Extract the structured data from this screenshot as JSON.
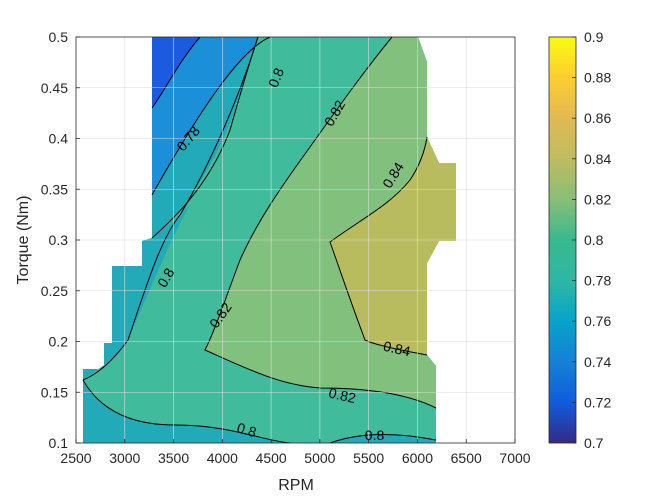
{
  "chart_data": {
    "type": "contour",
    "title": "",
    "xlabel": "RPM",
    "ylabel": "Torque (Nm)",
    "xlim": [
      2500,
      7000
    ],
    "ylim": [
      0.1,
      0.5
    ],
    "x_ticks": [
      "2500",
      "3000",
      "3500",
      "4000",
      "4500",
      "5000",
      "5500",
      "6000",
      "6500",
      "7000"
    ],
    "y_ticks": [
      "0.1",
      "0.15",
      "0.2",
      "0.25",
      "0.3",
      "0.35",
      "0.4",
      "0.45",
      "0.5"
    ],
    "grid": true,
    "colormap": "parula",
    "colorbar": {
      "range": [
        0.7,
        0.9
      ],
      "ticks": [
        "0.7",
        "0.72",
        "0.74",
        "0.76",
        "0.78",
        "0.8",
        "0.82",
        "0.84",
        "0.86",
        "0.88",
        "0.9"
      ]
    },
    "levels": [
      {
        "value": 0.74,
        "color": "#1a5be0"
      },
      {
        "value": 0.76,
        "color": "#1b8fd8"
      },
      {
        "value": 0.78,
        "color": "#23aab8"
      },
      {
        "value": 0.8,
        "color": "#40bb9c"
      },
      {
        "value": 0.82,
        "color": "#82c07d"
      },
      {
        "value": 0.84,
        "color": "#b8bc5e"
      }
    ],
    "contour_labels": [
      {
        "text": "0.8",
        "x": 4550,
        "y": 0.46,
        "angle": -68
      },
      {
        "text": "0.82",
        "x": 5150,
        "y": 0.425,
        "angle": -60
      },
      {
        "text": "0.84",
        "x": 5750,
        "y": 0.364,
        "angle": -58
      },
      {
        "text": "0.78",
        "x": 3650,
        "y": 0.4,
        "angle": -50
      },
      {
        "text": "0.8",
        "x": 3420,
        "y": 0.263,
        "angle": -60
      },
      {
        "text": "0.82",
        "x": 3980,
        "y": 0.226,
        "angle": -55
      },
      {
        "text": "0.84",
        "x": 5790,
        "y": 0.193,
        "angle": 13
      },
      {
        "text": "0.82",
        "x": 5230,
        "y": 0.147,
        "angle": 13
      },
      {
        "text": "0.8",
        "x": 4250,
        "y": 0.113,
        "angle": 17
      },
      {
        "text": "0.8",
        "x": 5560,
        "y": 0.108,
        "angle": 0
      }
    ]
  }
}
